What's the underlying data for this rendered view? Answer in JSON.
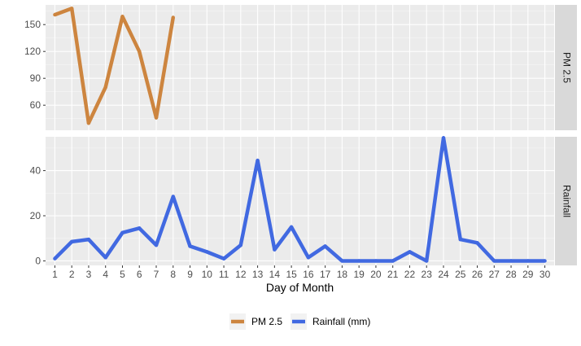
{
  "chart_data": {
    "type": "line",
    "xlabel": "Day of Month",
    "x_ticks": [
      1,
      2,
      3,
      4,
      5,
      6,
      7,
      8,
      9,
      10,
      11,
      12,
      13,
      14,
      15,
      16,
      17,
      18,
      19,
      20,
      21,
      22,
      23,
      24,
      25,
      26,
      27,
      28,
      29,
      30
    ],
    "xlim": [
      1,
      30
    ],
    "grid": true,
    "legend_position": "bottom",
    "panels": [
      {
        "strip_label": "PM 2.5",
        "ylim": [
          32,
          172
        ],
        "y_ticks": [
          60,
          90,
          120,
          150
        ],
        "series_name": "PM 2.5",
        "color": "#CD853F",
        "x": [
          1,
          2,
          3,
          4,
          5,
          6,
          7,
          8
        ],
        "values": [
          161,
          168,
          40,
          80,
          159,
          120,
          46,
          158
        ]
      },
      {
        "strip_label": "Rainfall",
        "ylim": [
          -2,
          55
        ],
        "y_ticks": [
          0,
          20,
          40
        ],
        "series_name": "Rainfall (mm)",
        "color": "#4169E1",
        "x": [
          1,
          2,
          3,
          4,
          5,
          6,
          7,
          8,
          9,
          10,
          11,
          12,
          13,
          14,
          15,
          16,
          17,
          18,
          19,
          20,
          21,
          22,
          23,
          24,
          25,
          26,
          27,
          28,
          29,
          30
        ],
        "values": [
          1,
          8.5,
          9.5,
          1.5,
          12.5,
          14.5,
          7,
          28.5,
          6.5,
          4,
          1,
          7,
          44.5,
          5,
          15,
          1.5,
          6.5,
          0,
          0,
          0,
          0,
          4,
          0,
          54.5,
          9.5,
          8,
          0,
          0,
          0,
          0
        ]
      }
    ],
    "legend": [
      {
        "label": "PM 2.5",
        "color": "#CD853F"
      },
      {
        "label": "Rainfall (mm)",
        "color": "#4169E1"
      }
    ]
  }
}
